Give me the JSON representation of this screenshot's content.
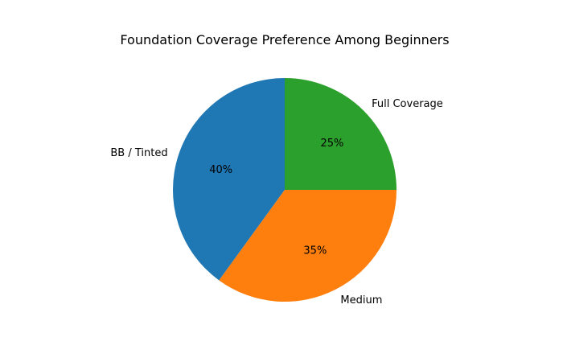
{
  "chart_data": {
    "type": "pie",
    "title": "Foundation Coverage Preference Among Beginners",
    "categories": [
      "BB / Tinted",
      "Medium",
      "Full Coverage"
    ],
    "values": [
      40,
      35,
      25
    ],
    "value_labels": [
      "40%",
      "35%",
      "25%"
    ],
    "colors": [
      "#1f77b4",
      "#ff7f0e",
      "#2ca02c"
    ],
    "start_angle": 90,
    "direction": "counterclockwise",
    "legend": false
  }
}
